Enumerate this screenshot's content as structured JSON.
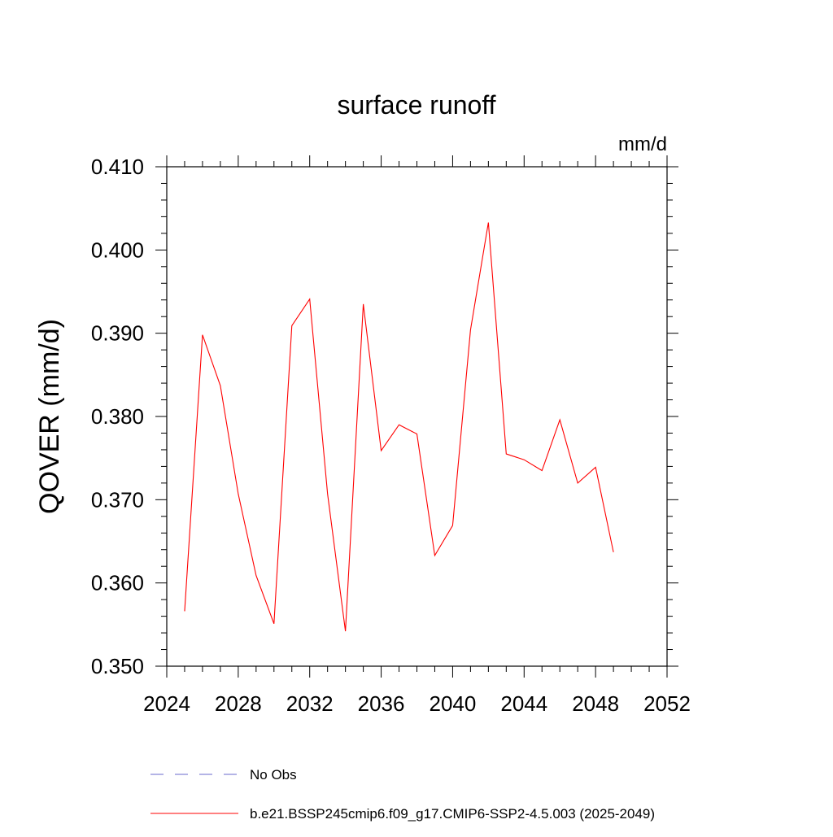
{
  "chart_data": {
    "type": "line",
    "title": "surface runoff",
    "units_label": "mm/d",
    "ylabel": "QOVER  (mm/d)",
    "xlabel": "",
    "xlim": [
      2024,
      2052
    ],
    "ylim": [
      0.35,
      0.41
    ],
    "x_ticks": [
      2024,
      2028,
      2032,
      2036,
      2040,
      2044,
      2048,
      2052
    ],
    "x_tick_labels": [
      "2024",
      "2028",
      "2032",
      "2036",
      "2040",
      "2044",
      "2048",
      "2052"
    ],
    "y_ticks": [
      0.35,
      0.36,
      0.37,
      0.38,
      0.39,
      0.4,
      0.41
    ],
    "y_tick_labels": [
      "0.350",
      "0.360",
      "0.370",
      "0.380",
      "0.390",
      "0.400",
      "0.410"
    ],
    "grid": false,
    "legend_position": "bottom",
    "series": [
      {
        "name": "No Obs",
        "color": "#6a6acd",
        "dashed": true,
        "x": [],
        "y": []
      },
      {
        "name": "b.e21.BSSP245cmip6.f09_g17.CMIP6-SSP2-4.5.003 (2025-2049)",
        "color": "#ff0000",
        "dashed": false,
        "x": [
          2025,
          2026,
          2027,
          2028,
          2029,
          2030,
          2031,
          2032,
          2033,
          2034,
          2035,
          2036,
          2037,
          2038,
          2039,
          2040,
          2041,
          2042,
          2043,
          2044,
          2045,
          2046,
          2047,
          2048,
          2049
        ],
        "y": [
          0.3566,
          0.3898,
          0.3837,
          0.3707,
          0.3609,
          0.3551,
          0.3909,
          0.3941,
          0.3707,
          0.3542,
          0.3935,
          0.3759,
          0.379,
          0.3779,
          0.3633,
          0.3669,
          0.3904,
          0.4033,
          0.3755,
          0.3748,
          0.3735,
          0.3796,
          0.372,
          0.3739,
          0.3637
        ]
      }
    ]
  }
}
